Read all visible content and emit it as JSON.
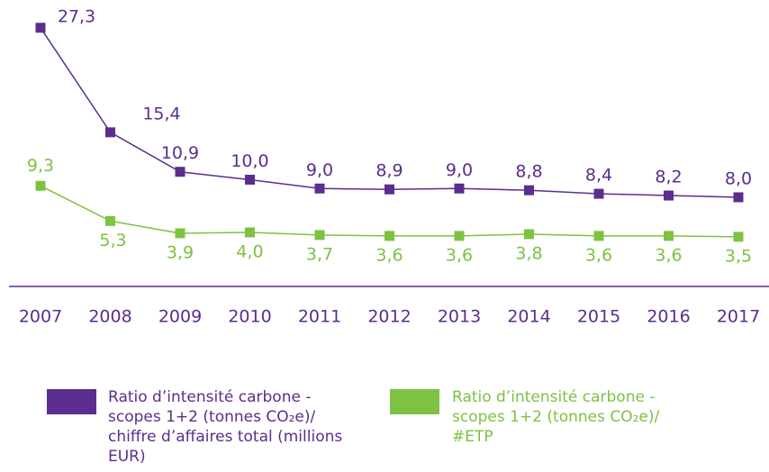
{
  "chart_data": {
    "type": "line",
    "categories": [
      "2007",
      "2008",
      "2009",
      "2010",
      "2011",
      "2012",
      "2013",
      "2014",
      "2015",
      "2016",
      "2017"
    ],
    "series": [
      {
        "name": "Ratio d’intensité carbone - scopes 1+2 (tonnes CO₂e)/ chiffre d’affaires total (millions EUR)",
        "color": "#5b2d8e",
        "values": [
          27.3,
          15.4,
          10.9,
          10.0,
          9.0,
          8.9,
          9.0,
          8.8,
          8.4,
          8.2,
          8.0
        ],
        "value_labels": [
          "27,3",
          "15,4",
          "10,9",
          "10,0",
          "9,0",
          "8,9",
          "9,0",
          "8,8",
          "8,4",
          "8,2",
          "8,0"
        ]
      },
      {
        "name": "Ratio d’intensité carbone - scopes 1+2 (tonnes CO₂e)/ #ETP",
        "color": "#7dc242",
        "values": [
          9.3,
          5.3,
          3.9,
          4.0,
          3.7,
          3.6,
          3.6,
          3.8,
          3.6,
          3.6,
          3.5
        ],
        "value_labels": [
          "9,3",
          "5,3",
          "3,9",
          "4,0",
          "3,7",
          "3,6",
          "3,6",
          "3,8",
          "3,6",
          "3,6",
          "3,5"
        ]
      }
    ],
    "ylim": [
      0,
      28
    ]
  }
}
